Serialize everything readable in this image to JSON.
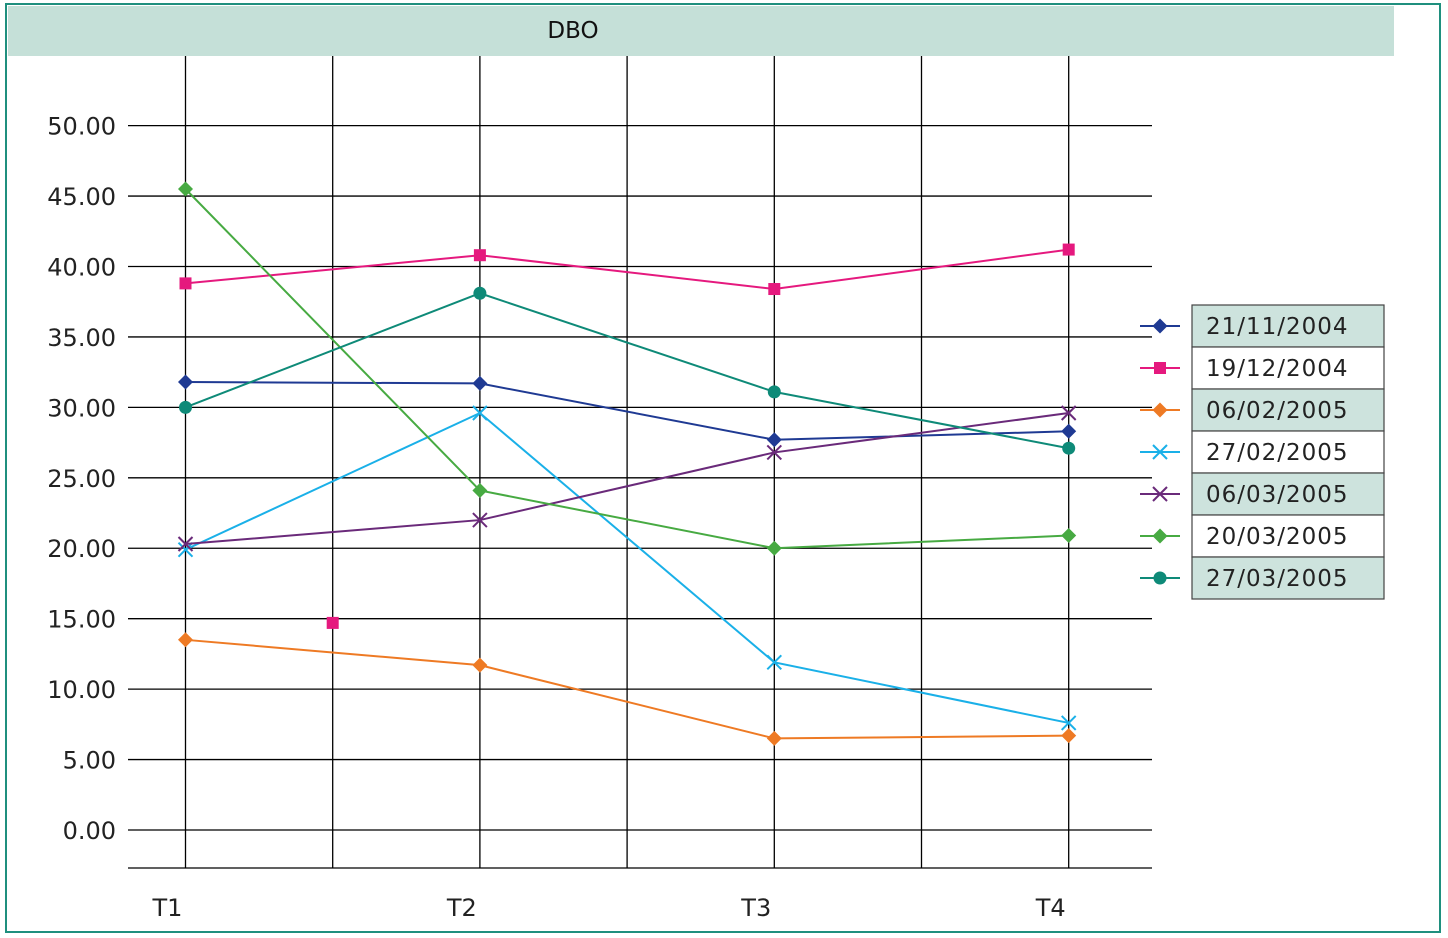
{
  "chart_data": {
    "type": "line",
    "title": "DBO",
    "xlabel": "",
    "ylabel": "",
    "categories": [
      "T1",
      "",
      "T2",
      "",
      "T3",
      "",
      "T4"
    ],
    "ylim": [
      0,
      50
    ],
    "yticks": [
      "0.00",
      "5.00",
      "10.00",
      "15.00",
      "20.00",
      "25.00",
      "30.00",
      "35.00",
      "40.00",
      "45.00",
      "50.00"
    ],
    "grid": true,
    "legend_position": "right",
    "series": [
      {
        "name": "21/11/2004",
        "color": "#1f3a93",
        "marker": "diamond",
        "values": [
          31.8,
          null,
          31.7,
          null,
          27.7,
          null,
          28.3
        ]
      },
      {
        "name": "19/12/2004",
        "color": "#e5197e",
        "marker": "square",
        "values": [
          38.8,
          14.7,
          40.8,
          null,
          38.4,
          null,
          41.2
        ]
      },
      {
        "name": "06/02/2005",
        "color": "#ee7a24",
        "marker": "diamond",
        "values": [
          13.5,
          null,
          11.7,
          null,
          6.5,
          null,
          6.7
        ]
      },
      {
        "name": "27/02/2005",
        "color": "#1ab0e8",
        "marker": "x",
        "values": [
          19.9,
          null,
          29.6,
          null,
          11.9,
          null,
          7.6
        ]
      },
      {
        "name": "06/03/2005",
        "color": "#6a2a7a",
        "marker": "x",
        "values": [
          20.3,
          null,
          22.0,
          null,
          26.8,
          null,
          29.6
        ]
      },
      {
        "name": "20/03/2005",
        "color": "#47aa42",
        "marker": "diamond",
        "values": [
          45.5,
          null,
          24.1,
          null,
          20.0,
          null,
          20.9
        ]
      },
      {
        "name": "27/03/2005",
        "color": "#0e8a78",
        "marker": "circle",
        "values": [
          30.0,
          null,
          38.1,
          null,
          31.1,
          null,
          27.1
        ]
      }
    ]
  },
  "colors": {
    "frame": "#1f8f7e",
    "title_bar": "#c5e0d8",
    "legend_shaded": "#cde3dd",
    "grid": "#000000"
  }
}
